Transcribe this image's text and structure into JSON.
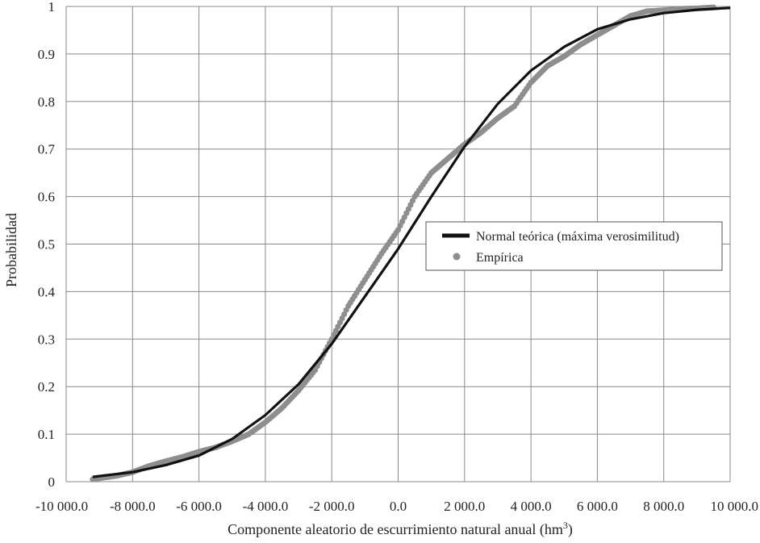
{
  "chart_data": {
    "type": "line",
    "xlabel": "Componente aleatorio de escurrimiento natural anual (hm",
    "xlabel_sup": "3",
    "xlabel_end": ")",
    "ylabel": "Probabilidad",
    "xlim": [
      -10000,
      10000
    ],
    "ylim": [
      0,
      1
    ],
    "x_ticks": [
      -10000,
      -8000,
      -6000,
      -4000,
      -2000,
      0,
      2000,
      4000,
      6000,
      8000,
      10000
    ],
    "x_tick_labels": [
      "-10 000.0",
      "-8 000.0",
      "-6 000.0",
      "-4 000.0",
      "-2 000.0",
      "0.0",
      "2 000.0",
      "4 000.0",
      "6 000.0",
      "8 000.0",
      "10 000.0"
    ],
    "y_ticks": [
      0,
      0.1,
      0.2,
      0.3,
      0.4,
      0.5,
      0.6,
      0.7,
      0.8,
      0.9,
      1
    ],
    "y_tick_labels": [
      "0",
      "0.1",
      "0.2",
      "0.3",
      "0.4",
      "0.5",
      "0.6",
      "0.7",
      "0.8",
      "0.9",
      "1"
    ],
    "grid": true,
    "legend_position": "right-center",
    "series": [
      {
        "name": "Normal teórica (máxima verosimilitud)",
        "style": "line",
        "color": "#111111",
        "x": [
          -9200,
          -8000,
          -7000,
          -6000,
          -5000,
          -4000,
          -3000,
          -2000,
          -1000,
          0,
          1000,
          2000,
          3000,
          4000,
          5000,
          6000,
          7000,
          8000,
          9000,
          10000
        ],
        "y": [
          0.01,
          0.02,
          0.035,
          0.055,
          0.09,
          0.14,
          0.205,
          0.29,
          0.39,
          0.49,
          0.6,
          0.705,
          0.795,
          0.865,
          0.915,
          0.952,
          0.973,
          0.986,
          0.993,
          0.997
        ]
      },
      {
        "name": "Empírica",
        "style": "markers",
        "color": "#8e8e8e",
        "x": [
          -9200,
          -8500,
          -8000,
          -7500,
          -7000,
          -6500,
          -6000,
          -5500,
          -5000,
          -4500,
          -4000,
          -3500,
          -3000,
          -2500,
          -2000,
          -1500,
          -1000,
          -500,
          0,
          500,
          1000,
          1500,
          2000,
          2500,
          3000,
          3500,
          4000,
          4500,
          5000,
          5500,
          6000,
          6500,
          7000,
          7500,
          8000,
          8500,
          9000,
          9500
        ],
        "y": [
          0.005,
          0.012,
          0.02,
          0.033,
          0.043,
          0.052,
          0.063,
          0.072,
          0.085,
          0.1,
          0.125,
          0.155,
          0.192,
          0.235,
          0.3,
          0.37,
          0.425,
          0.48,
          0.53,
          0.6,
          0.65,
          0.68,
          0.71,
          0.735,
          0.765,
          0.79,
          0.84,
          0.875,
          0.895,
          0.92,
          0.94,
          0.96,
          0.98,
          0.99,
          0.992,
          0.995,
          0.996,
          0.998
        ]
      }
    ]
  }
}
